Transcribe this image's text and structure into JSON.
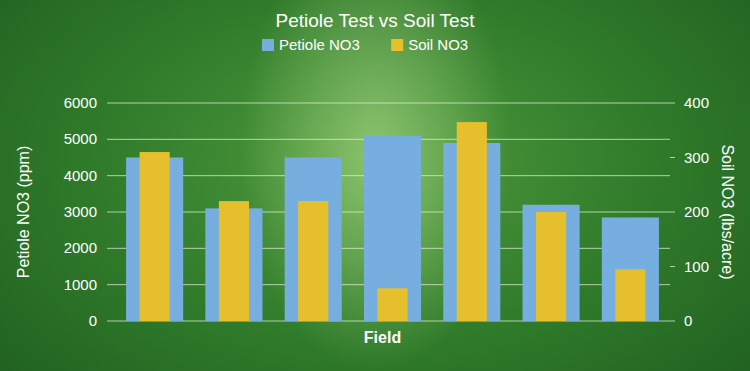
{
  "chart_data": {
    "type": "bar",
    "title": "Petiole Test vs Soil Test",
    "xlabel": "Field",
    "ylabel": "Petiole NO3 (ppm)",
    "y2label": "Soil NO3 (lbs/acre)",
    "categories": [
      null,
      null,
      null,
      null,
      null,
      null,
      null
    ],
    "series": [
      {
        "name": "Petiole NO3",
        "color": "#76aee0",
        "values": [
          4500,
          3100,
          4500,
          5100,
          4900,
          3200,
          2850
        ]
      },
      {
        "name": "Soil NO3",
        "color": "#e6c02c",
        "axis": "y2",
        "values": [
          310,
          220,
          220,
          60,
          365,
          200,
          95
        ]
      }
    ],
    "ylim": [
      0,
      6000
    ],
    "yticks": [
      0,
      1000,
      2000,
      3000,
      4000,
      5000,
      6000
    ],
    "y2lim": [
      0,
      400
    ],
    "y2ticks": [
      0,
      100,
      200,
      300,
      400
    ],
    "grid": true,
    "legend": "top"
  }
}
